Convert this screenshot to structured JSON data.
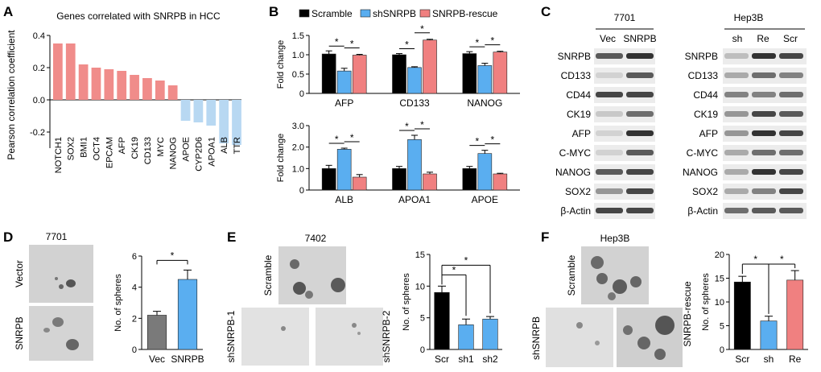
{
  "colors": {
    "pos_bar": "#f08c8a",
    "neg_bar": "#b8d8f2",
    "scramble": "#000000",
    "sh": "#5aaef0",
    "rescue": "#f08080",
    "vec": "#7a7a7a"
  },
  "panels": {
    "A": {
      "letter": "A"
    },
    "B": {
      "letter": "B"
    },
    "C": {
      "letter": "C"
    },
    "D": {
      "letter": "D"
    },
    "E": {
      "letter": "E"
    },
    "F": {
      "letter": "F"
    }
  },
  "panel_c": {
    "title_7701": "7701",
    "title_hep3b": "Hep3B",
    "cols_7701": [
      "Vec",
      "SNRPB"
    ],
    "cols_hep3b": [
      "sh",
      "Re",
      "Scr"
    ],
    "rows": [
      "SNRPB",
      "CD133",
      "CD44",
      "CK19",
      "AFP",
      "C-MYC",
      "NANOG",
      "SOX2",
      "β-Actin"
    ]
  },
  "panel_d": {
    "title": "7701",
    "img_labels": [
      "Vector",
      "SNRPB"
    ]
  },
  "panel_e": {
    "title": "7402",
    "img_labels": [
      "Scramble",
      "shSNRPB-1",
      "shSNRPB-2"
    ]
  },
  "panel_f": {
    "title": "Hep3B",
    "img_labels": [
      "Scramble",
      "shSNRPB",
      "SNRPB-rescue"
    ]
  },
  "sig_mark": "*",
  "chart_data": [
    {
      "id": "A",
      "type": "bar",
      "title": "Genes correlated with SNRPB in HCC",
      "ylabel": "Pearson correlation coefficient",
      "xlabel": "",
      "ylim": [
        -0.3,
        0.4
      ],
      "yticks": [
        -0.2,
        0.0,
        0.2,
        0.4
      ],
      "ytick_labels": [
        "-0.2",
        "0.0",
        "0.2",
        "0.4"
      ],
      "categories": [
        "NOTCH1",
        "SOX2",
        "BMI1",
        "OCT4",
        "EPCAM",
        "AFP",
        "CK19",
        "CD133",
        "MYC",
        "NANOG",
        "APOE",
        "CYP2D6",
        "APOA1",
        "ALB",
        "TTR"
      ],
      "values": [
        0.35,
        0.35,
        0.22,
        0.2,
        0.19,
        0.18,
        0.155,
        0.135,
        0.12,
        0.09,
        -0.13,
        -0.14,
        -0.16,
        -0.27,
        -0.28
      ]
    },
    {
      "id": "B-top",
      "type": "bar",
      "ylabel": "Fold change",
      "legend": [
        "Scramble",
        "shSNRPB",
        "SNRPB-rescue"
      ],
      "legend_position": "top",
      "ylim": [
        0,
        1.5
      ],
      "yticks": [
        0,
        0.5,
        1.0,
        1.5
      ],
      "ytick_labels": [
        "0",
        "0.5",
        "1.0",
        "1.5"
      ],
      "categories": [
        "AFP",
        "CD133",
        "NANOG"
      ],
      "series": [
        {
          "name": "Scramble",
          "values": [
            1.02,
            1.0,
            1.03
          ],
          "errors": [
            0.08,
            0.03,
            0.05
          ]
        },
        {
          "name": "shSNRPB",
          "values": [
            0.58,
            0.67,
            0.72
          ],
          "errors": [
            0.07,
            0.02,
            0.06
          ]
        },
        {
          "name": "SNRPB-rescue",
          "values": [
            0.99,
            1.38,
            1.07
          ],
          "errors": [
            0.02,
            0.02,
            0.02
          ]
        }
      ],
      "significance": [
        "*",
        "*",
        "*",
        "*",
        "*",
        "*"
      ]
    },
    {
      "id": "B-bottom",
      "type": "bar",
      "ylabel": "Fold change",
      "ylim": [
        0,
        3
      ],
      "yticks": [
        0,
        1,
        2,
        3
      ],
      "ytick_labels": [
        "0",
        "1.0",
        "2.0",
        "3.0"
      ],
      "categories": [
        "ALB",
        "APOA1",
        "APOE"
      ],
      "series": [
        {
          "name": "Scramble",
          "values": [
            1.0,
            1.0,
            1.0
          ],
          "errors": [
            0.15,
            0.1,
            0.1
          ]
        },
        {
          "name": "shSNRPB",
          "values": [
            1.9,
            2.35,
            1.7
          ],
          "errors": [
            0.05,
            0.2,
            0.15
          ]
        },
        {
          "name": "SNRPB-rescue",
          "values": [
            0.6,
            0.75,
            0.75
          ],
          "errors": [
            0.12,
            0.08,
            0.03
          ]
        }
      ],
      "significance": [
        "*",
        "*",
        "*",
        "*",
        "*",
        "*"
      ]
    },
    {
      "id": "D",
      "type": "bar",
      "ylabel": "No. of spheres",
      "ylim": [
        0,
        6
      ],
      "yticks": [
        0,
        2,
        4,
        6
      ],
      "ytick_labels": [
        "0",
        "2",
        "4",
        "6"
      ],
      "categories": [
        "Vec",
        "SNRPB"
      ],
      "values": [
        2.2,
        4.5
      ],
      "errors": [
        0.25,
        0.6
      ],
      "significance": [
        "*"
      ]
    },
    {
      "id": "E",
      "type": "bar",
      "ylabel": "No. of spheres",
      "ylim": [
        0,
        15
      ],
      "yticks": [
        0,
        5,
        10,
        15
      ],
      "ytick_labels": [
        "0",
        "5",
        "10",
        "15"
      ],
      "categories": [
        "Scr",
        "sh1",
        "sh2"
      ],
      "values": [
        9.0,
        3.9,
        4.8
      ],
      "errors": [
        1.0,
        0.9,
        0.4
      ],
      "significance": [
        "*",
        "*"
      ]
    },
    {
      "id": "F",
      "type": "bar",
      "ylabel": "No. of spheres",
      "ylim": [
        0,
        20
      ],
      "yticks": [
        0,
        5,
        10,
        15,
        20
      ],
      "ytick_labels": [
        "0",
        "5",
        "10",
        "15",
        "20"
      ],
      "categories": [
        "Scr",
        "sh",
        "Re"
      ],
      "values": [
        14.2,
        6.0,
        14.6
      ],
      "errors": [
        1.2,
        1.0,
        2.0
      ],
      "significance": [
        "*",
        "*"
      ]
    }
  ]
}
